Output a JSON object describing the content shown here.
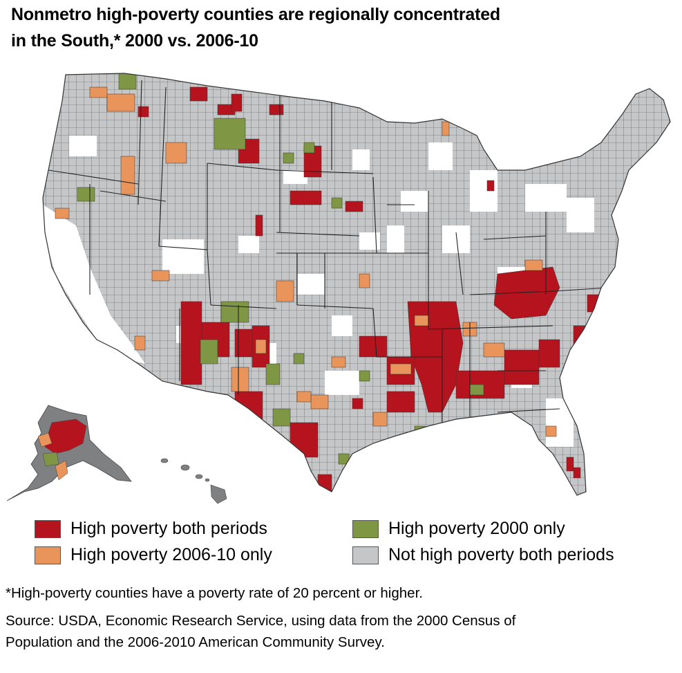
{
  "title_line1": "Nonmetro high-poverty counties are regionally concentrated",
  "title_line2": "in the South,*  2000 vs. 2006-10",
  "legend": [
    {
      "label": "High poverty both periods",
      "color": "#b5141e"
    },
    {
      "label": "High poverty 2006-10 only",
      "color": "#e8945a"
    },
    {
      "label": "High poverty 2000 only",
      "color": "#7f9745"
    },
    {
      "label": "Not high poverty both periods",
      "color": "#c5c6c8"
    }
  ],
  "colors": {
    "both": "#b5141e",
    "recent": "#e8945a",
    "early": "#7f9745",
    "neither": "#c5c6c8",
    "metro": "#ffffff",
    "ak_hi_fill": "#7f8081",
    "border": "#333333"
  },
  "footnote": "*High-poverty counties have a poverty rate of 20 percent or higher.",
  "source_line1": "Source:  USDA, Economic Research Service, using data from the 2000 Census of",
  "source_line2": "Population and the 2006-2010 American Community Survey."
}
